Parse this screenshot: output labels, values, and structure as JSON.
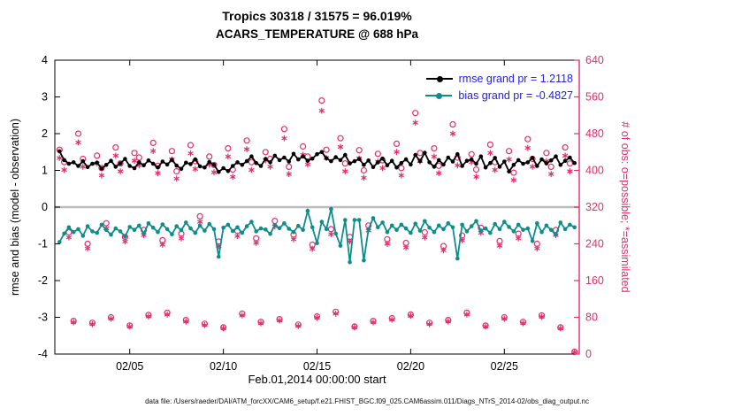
{
  "caption": "data file: /Users/raeder/DAI/ATM_forcXX/CAM6_setup/f.e21.FHIST_BGC.f09_025.CAM6assim.011/Diags_NTrS_2014-02/obs_diag_output.nc",
  "chart_data": {
    "type": "line",
    "title": "Tropics 30318 / 31575 = 96.019%",
    "subtitle": "ACARS_TEMPERATURE @ 688 hPa",
    "xlabel": "Feb.01,2014 00:00:00 start",
    "ylabel_left": "rmse and bias (model - observation)",
    "ylabel_right": "# of obs: o=possible; *=assimilated",
    "legend_text_color": "#2222dd",
    "x_axis": {
      "min": 1,
      "max": 29,
      "ticks": [
        5,
        10,
        15,
        20,
        25
      ],
      "tick_labels": [
        "02/05",
        "02/10",
        "02/15",
        "02/20",
        "02/25"
      ]
    },
    "y_axis_left": {
      "min": -4,
      "max": 4,
      "ticks": [
        -4,
        -3,
        -2,
        -1,
        0,
        1,
        2,
        3,
        4
      ],
      "color": "#000000"
    },
    "y_axis_right": {
      "min": 0,
      "max": 640,
      "ticks": [
        0,
        80,
        160,
        240,
        320,
        400,
        480,
        560,
        640
      ],
      "color": "#e22d6d"
    },
    "x_start": 1.25,
    "x_step": 0.25,
    "zero_line": {
      "value": 0,
      "color": "#bcbcbc"
    },
    "legend": [
      {
        "label": "rmse grand pr = 1.2118",
        "value": 1.2118,
        "color": "#000000"
      },
      {
        "label": "bias grand pr = -0.4827",
        "value": -0.4827,
        "color": "#0e8d8d"
      }
    ],
    "series": [
      {
        "name": "possible_obs",
        "axis": "right",
        "type": "scatter",
        "marker": "o",
        "color": "#e22d6d",
        "values": [
          445,
          418,
          265,
          72,
          480,
          425,
          240,
          68,
          432,
          405,
          285,
          80,
          450,
          415,
          255,
          62,
          438,
          428,
          270,
          85,
          460,
          410,
          248,
          90,
          442,
          398,
          262,
          74,
          455,
          420,
          300,
          66,
          430,
          412,
          245,
          58,
          448,
          402,
          268,
          88,
          465,
          418,
          252,
          70,
          440,
          425,
          290,
          76,
          490,
          408,
          260,
          64,
          452,
          430,
          238,
          82,
          552,
          445,
          272,
          92,
          470,
          415,
          255,
          60,
          444,
          400,
          280,
          72,
          436,
          422,
          250,
          78,
          458,
          405,
          242,
          86,
          525,
          438,
          265,
          68,
          448,
          410,
          235,
          74,
          500,
          428,
          258,
          90,
          435,
          402,
          275,
          62,
          456,
          418,
          246,
          80,
          442,
          395,
          262,
          70,
          468,
          425,
          240,
          84,
          438,
          408,
          270,
          58,
          450,
          415,
          5
        ]
      },
      {
        "name": "assimilated_obs",
        "axis": "right",
        "type": "scatter",
        "marker": "*",
        "color": "#e22d6d",
        "values": [
          427,
          401,
          254,
          69,
          461,
          408,
          230,
          65,
          415,
          389,
          274,
          77,
          432,
          398,
          245,
          60,
          421,
          411,
          259,
          82,
          442,
          394,
          238,
          86,
          424,
          382,
          252,
          71,
          437,
          403,
          288,
          63,
          413,
          396,
          235,
          56,
          430,
          386,
          257,
          84,
          446,
          401,
          242,
          67,
          422,
          408,
          278,
          73,
          470,
          392,
          250,
          61,
          434,
          413,
          229,
          79,
          530,
          427,
          261,
          88,
          451,
          398,
          245,
          58,
          426,
          384,
          269,
          69,
          419,
          405,
          240,
          75,
          440,
          389,
          232,
          83,
          504,
          420,
          254,
          65,
          430,
          394,
          226,
          71,
          480,
          411,
          248,
          86,
          418,
          386,
          264,
          60,
          438,
          401,
          236,
          77,
          424,
          379,
          252,
          67,
          449,
          408,
          230,
          81,
          420,
          392,
          259,
          56,
          432,
          398,
          4
        ]
      },
      {
        "name": "bias",
        "axis": "left",
        "type": "line",
        "marker": "dot",
        "color": "#0e8d8d",
        "grand_mean": -0.4827,
        "values": [
          -0.95,
          -0.72,
          -0.55,
          -0.68,
          -0.6,
          -0.78,
          -0.52,
          -0.66,
          -0.7,
          -0.48,
          -0.62,
          -0.75,
          -0.58,
          -0.66,
          -0.8,
          -0.54,
          -0.62,
          -0.5,
          -0.72,
          -0.44,
          -0.56,
          -0.68,
          -0.47,
          -0.6,
          -0.74,
          -0.52,
          -0.63,
          -0.42,
          -0.58,
          -0.7,
          -0.5,
          -0.64,
          -0.46,
          -0.6,
          -1.35,
          -0.56,
          -0.48,
          -0.65,
          -0.55,
          -0.7,
          -0.52,
          -0.4,
          -0.66,
          -0.58,
          -0.61,
          -0.73,
          -0.49,
          -0.57,
          -0.44,
          -0.59,
          -0.68,
          -0.51,
          -0.62,
          -0.1,
          -0.55,
          -0.98,
          -0.4,
          -0.6,
          -0.05,
          -0.72,
          -1.05,
          -0.35,
          -1.5,
          -0.35,
          -0.35,
          -1.45,
          -0.6,
          -0.3,
          -0.55,
          -0.42,
          -0.68,
          -0.5,
          -0.62,
          -0.48,
          -0.58,
          -0.7,
          -0.45,
          -0.64,
          -0.38,
          -0.56,
          -0.68,
          -0.5,
          -0.6,
          -0.44,
          -0.55,
          -1.4,
          -0.48,
          -0.66,
          -0.52,
          -0.38,
          -0.64,
          -0.58,
          -0.7,
          -0.46,
          -0.6,
          -0.4,
          -0.54,
          -0.66,
          -0.48,
          -0.62,
          -0.58,
          -0.92,
          -0.44,
          -0.68,
          -0.5,
          -0.62,
          -0.75,
          -0.42,
          -0.6,
          -0.48,
          -0.55
        ]
      },
      {
        "name": "rmse",
        "axis": "left",
        "type": "line",
        "marker": "dot",
        "color": "#000000",
        "grand_mean": 1.2118,
        "values": [
          1.52,
          1.28,
          1.18,
          1.22,
          1.12,
          1.25,
          1.09,
          1.18,
          1.21,
          1.05,
          1.15,
          1.26,
          1.1,
          1.19,
          1.31,
          1.12,
          1.06,
          1.22,
          1.14,
          1.27,
          1.18,
          1.08,
          1.24,
          1.16,
          1.29,
          1.13,
          1.04,
          1.21,
          1.17,
          1.3,
          1.11,
          1.08,
          1.23,
          1.15,
          0.96,
          1.06,
          0.98,
          1.12,
          1.22,
          1.15,
          1.25,
          1.38,
          1.2,
          1.12,
          1.31,
          1.22,
          1.4,
          1.28,
          1.35,
          1.24,
          1.45,
          1.3,
          1.38,
          1.26,
          1.32,
          1.44,
          1.5,
          1.33,
          1.25,
          1.36,
          1.28,
          1.42,
          1.19,
          1.25,
          1.31,
          1.15,
          1.27,
          1.09,
          1.22,
          1.32,
          1.14,
          1.26,
          1.08,
          1.2,
          1.3,
          1.16,
          1.42,
          1.25,
          1.48,
          1.22,
          1.1,
          1.28,
          1.16,
          1.35,
          1.24,
          1.44,
          1.12,
          1.26,
          1.3,
          1.18,
          1.38,
          1.08,
          1.2,
          1.34,
          1.1,
          1.24,
          0.97,
          1.15,
          1.28,
          1.18,
          1.22,
          1.34,
          1.12,
          1.3,
          1.19,
          1.27,
          1.38,
          1.15,
          1.26,
          1.35,
          1.2
        ]
      }
    ]
  }
}
